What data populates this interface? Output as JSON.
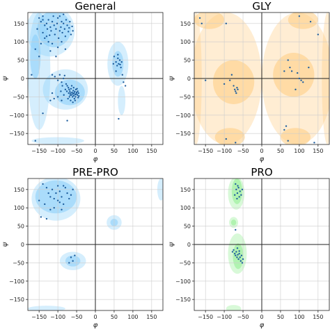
{
  "chart_data": [
    {
      "type": "scatter",
      "title": "General",
      "xlabel": "φ",
      "ylabel": "ψ",
      "xlim": [
        -180,
        180
      ],
      "ylim": [
        -180,
        180
      ],
      "xticks": [
        -150,
        -100,
        -50,
        0,
        50,
        100,
        150
      ],
      "yticks": [
        -150,
        -100,
        -50,
        0,
        50,
        100,
        150
      ],
      "grid": true,
      "region_color": "#87CEFA",
      "point_color": "#1f5f9f",
      "points": [
        [
          -150,
          165
        ],
        [
          -145,
          155
        ],
        [
          -140,
          160
        ],
        [
          -135,
          145
        ],
        [
          -130,
          150
        ],
        [
          -125,
          160
        ],
        [
          -120,
          140
        ],
        [
          -118,
          130
        ],
        [
          -115,
          155
        ],
        [
          -110,
          145
        ],
        [
          -108,
          120
        ],
        [
          -105,
          135
        ],
        [
          -102,
          150
        ],
        [
          -100,
          165
        ],
        [
          -98,
          110
        ],
        [
          -95,
          130
        ],
        [
          -92,
          140
        ],
        [
          -90,
          100
        ],
        [
          -88,
          125
        ],
        [
          -85,
          150
        ],
        [
          -82,
          135
        ],
        [
          -80,
          115
        ],
        [
          -78,
          160
        ],
        [
          -75,
          145
        ],
        [
          -72,
          128
        ],
        [
          -70,
          138
        ],
        [
          -68,
          155
        ],
        [
          -65,
          120
        ],
        [
          -62,
          142
        ],
        [
          -60,
          130
        ],
        [
          -140,
          125
        ],
        [
          -135,
          110
        ],
        [
          -128,
          135
        ],
        [
          -122,
          118
        ],
        [
          -115,
          95
        ],
        [
          -112,
          170
        ],
        [
          -95,
          170
        ],
        [
          -85,
          175
        ],
        [
          -140,
          170
        ],
        [
          -130,
          115
        ],
        [
          -155,
          135
        ],
        [
          -160,
          80
        ],
        [
          -150,
          60
        ],
        [
          -145,
          95
        ],
        [
          -120,
          75
        ],
        [
          -100,
          85
        ],
        [
          -80,
          80
        ],
        [
          -105,
          60
        ],
        [
          -125,
          100
        ],
        [
          -90,
          155
        ],
        [
          -170,
          10
        ],
        [
          -160,
          -170
        ],
        [
          -140,
          -95
        ],
        [
          -120,
          -60
        ],
        [
          -115,
          10
        ],
        [
          -108,
          5
        ],
        [
          -100,
          -5
        ],
        [
          -95,
          10
        ],
        [
          -90,
          -10
        ],
        [
          -85,
          0
        ],
        [
          -82,
          8
        ],
        [
          -78,
          -15
        ],
        [
          -75,
          -20
        ],
        [
          -72,
          -25
        ],
        [
          -70,
          -30
        ],
        [
          -68,
          -35
        ],
        [
          -66,
          -40
        ],
        [
          -65,
          -28
        ],
        [
          -64,
          -45
        ],
        [
          -62,
          -38
        ],
        [
          -61,
          -50
        ],
        [
          -60,
          -42
        ],
        [
          -59,
          -33
        ],
        [
          -58,
          -47
        ],
        [
          -57,
          -40
        ],
        [
          -56,
          -55
        ],
        [
          -55,
          -36
        ],
        [
          -54,
          -44
        ],
        [
          -53,
          -50
        ],
        [
          -52,
          -30
        ],
        [
          -51,
          -42
        ],
        [
          -50,
          -38
        ],
        [
          -48,
          -45
        ],
        [
          -47,
          -35
        ],
        [
          -46,
          -52
        ],
        [
          -45,
          -40
        ],
        [
          -63,
          -20
        ],
        [
          -67,
          -45
        ],
        [
          -69,
          -50
        ],
        [
          -71,
          -40
        ],
        [
          -73,
          -55
        ],
        [
          -76,
          -35
        ],
        [
          -80,
          -30
        ],
        [
          -84,
          -45
        ],
        [
          -88,
          -20
        ],
        [
          -92,
          -35
        ],
        [
          -58,
          -25
        ],
        [
          -54,
          -60
        ],
        [
          -49,
          -28
        ],
        [
          -44,
          -48
        ],
        [
          -60,
          -65
        ],
        [
          -66,
          -60
        ],
        [
          -115,
          -40
        ],
        [
          -110,
          -55
        ],
        [
          -100,
          -50
        ],
        [
          -75,
          -115
        ],
        [
          -90,
          -60
        ],
        [
          50,
          60
        ],
        [
          55,
          45
        ],
        [
          58,
          35
        ],
        [
          60,
          55
        ],
        [
          62,
          40
        ],
        [
          65,
          50
        ],
        [
          68,
          30
        ],
        [
          70,
          45
        ],
        [
          55,
          20
        ],
        [
          72,
          10
        ],
        [
          75,
          -10
        ],
        [
          80,
          -20
        ],
        [
          60,
          65
        ],
        [
          62,
          -110
        ],
        [
          48,
          40
        ],
        [
          66,
          38
        ]
      ]
    },
    {
      "type": "scatter",
      "title": "GLY",
      "xlabel": "φ",
      "ylabel": "ψ",
      "xlim": [
        -180,
        180
      ],
      "ylim": [
        -180,
        180
      ],
      "xticks": [
        -150,
        -100,
        -50,
        0,
        50,
        100,
        150
      ],
      "yticks": [
        -150,
        -100,
        -50,
        0,
        50,
        100,
        150
      ],
      "grid": true,
      "region_color": "#FFCC80",
      "point_color": "#1f5f9f",
      "points": [
        [
          -165,
          165
        ],
        [
          -160,
          150
        ],
        [
          -95,
          150
        ],
        [
          -150,
          -5
        ],
        [
          -100,
          -15
        ],
        [
          -85,
          -5
        ],
        [
          -75,
          -20
        ],
        [
          -72,
          -30
        ],
        [
          -70,
          -35
        ],
        [
          -68,
          -40
        ],
        [
          -66,
          -25
        ],
        [
          -64,
          -30
        ],
        [
          -80,
          10
        ],
        [
          -95,
          -165
        ],
        [
          -70,
          -175
        ],
        [
          100,
          170
        ],
        [
          130,
          155
        ],
        [
          150,
          120
        ],
        [
          70,
          50
        ],
        [
          75,
          30
        ],
        [
          60,
          20
        ],
        [
          80,
          20
        ],
        [
          95,
          15
        ],
        [
          100,
          0
        ],
        [
          105,
          -5
        ],
        [
          110,
          -10
        ],
        [
          125,
          30
        ],
        [
          90,
          -30
        ],
        [
          65,
          -130
        ],
        [
          60,
          -140
        ],
        [
          70,
          -170
        ],
        [
          140,
          -175
        ]
      ]
    },
    {
      "type": "scatter",
      "title": "PRE-PRO",
      "xlabel": "φ",
      "ylabel": "ψ",
      "xlim": [
        -180,
        180
      ],
      "ylim": [
        -180,
        180
      ],
      "xticks": [
        -150,
        -100,
        -50,
        0,
        50,
        100,
        150
      ],
      "yticks": [
        -150,
        -100,
        -50,
        0,
        50,
        100,
        150
      ],
      "grid": true,
      "region_color": "#87CEFA",
      "point_color": "#1f5f9f",
      "points": [
        [
          -140,
          165
        ],
        [
          -130,
          155
        ],
        [
          -125,
          140
        ],
        [
          -120,
          130
        ],
        [
          -115,
          150
        ],
        [
          -110,
          125
        ],
        [
          -105,
          140
        ],
        [
          -100,
          120
        ],
        [
          -95,
          145
        ],
        [
          -90,
          130
        ],
        [
          -85,
          110
        ],
        [
          -80,
          155
        ],
        [
          -75,
          140
        ],
        [
          -70,
          125
        ],
        [
          -65,
          135
        ],
        [
          -60,
          150
        ],
        [
          -135,
          110
        ],
        [
          -120,
          95
        ],
        [
          -145,
          75
        ],
        [
          -130,
          70
        ],
        [
          -110,
          100
        ],
        [
          -100,
          160
        ],
        [
          -95,
          115
        ],
        [
          -90,
          95
        ],
        [
          -85,
          160
        ],
        [
          -150,
          120
        ],
        [
          -65,
          -35
        ],
        [
          -60,
          -45
        ],
        [
          -70,
          -50
        ],
        [
          -55,
          -30
        ]
      ]
    },
    {
      "type": "scatter",
      "title": "PRO",
      "xlabel": "φ",
      "ylabel": "ψ",
      "xlim": [
        -180,
        180
      ],
      "ylim": [
        -180,
        180
      ],
      "xticks": [
        -150,
        -100,
        -50,
        0,
        50,
        100,
        150
      ],
      "yticks": [
        -150,
        -100,
        -50,
        0,
        50,
        100,
        150
      ],
      "grid": true,
      "region_color": "#90EE90",
      "point_color": "#1f5f9f",
      "points": [
        [
          -70,
          165
        ],
        [
          -68,
          150
        ],
        [
          -65,
          140
        ],
        [
          -62,
          155
        ],
        [
          -60,
          130
        ],
        [
          -58,
          145
        ],
        [
          -55,
          135
        ],
        [
          -52,
          150
        ],
        [
          -66,
          125
        ],
        [
          -72,
          135
        ],
        [
          -64,
          160
        ],
        [
          -70,
          40
        ],
        [
          -75,
          -15
        ],
        [
          -72,
          -25
        ],
        [
          -70,
          -30
        ],
        [
          -68,
          -20
        ],
        [
          -66,
          -35
        ],
        [
          -64,
          -28
        ],
        [
          -62,
          -40
        ],
        [
          -60,
          -25
        ],
        [
          -58,
          -35
        ],
        [
          -56,
          -45
        ],
        [
          -54,
          -30
        ],
        [
          -52,
          -50
        ],
        [
          -50,
          -40
        ],
        [
          -65,
          -10
        ],
        [
          -60,
          -18
        ],
        [
          -78,
          -20
        ]
      ]
    }
  ]
}
